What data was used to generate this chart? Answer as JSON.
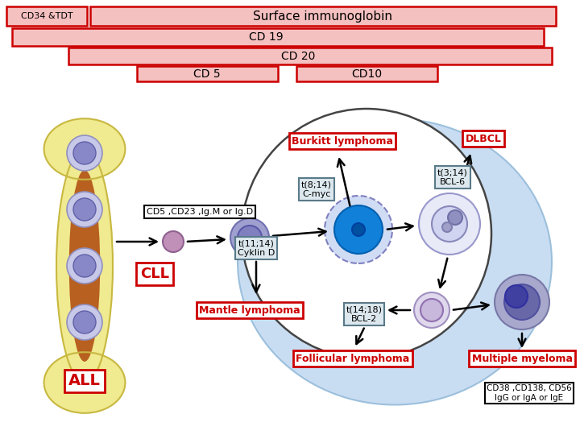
{
  "bg_color": "#ffffff",
  "header_bar_color": "#f5c0c0",
  "header_border_color": "#cc0000",
  "row1_left_text": "CD34 &TDT",
  "row1_right_text": "Surface immunoglobin",
  "row2_text": "CD 19",
  "row3_text": "CD 20",
  "row4_left_text": "CD 5",
  "row4_right_text": "CD10",
  "labels": {
    "ALL": "ALL",
    "CLL": "CLL",
    "burkitt": "Burkitt lymphoma",
    "dlbcl": "DLBCL",
    "mantle": "Mantle lymphoma",
    "follicular": "Follicular lymphoma",
    "multiple_myeloma": "Multiple myeloma",
    "t8_14": "t(8;14)\nC-myc",
    "t3_14": "t(3;14)\nBCL-6",
    "t11_14": "t(11;14)\nCyklin D",
    "t14_18": "t(14;18)\nBCL-2",
    "cd5_label": "CD5 ,CD23 ,Ig.M or Ig.D",
    "cd38_label": "CD38 ,CD138, CD56\nIgG or IgA or IgE"
  },
  "red_box_color": "#cc0000",
  "gray_box_color": "#5a7a8a",
  "gray_box_fill": "#dce8ee"
}
